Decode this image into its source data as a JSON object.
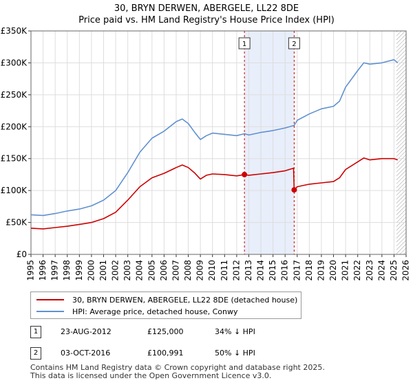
{
  "title": {
    "line1": "30, BRYN DERWEN, ABERGELE, LL22 8DE",
    "line2": "Price paid vs. HM Land Registry's House Price Index (HPI)"
  },
  "colors": {
    "property": "#cc0000",
    "hpi": "#6090d0",
    "shade": "#e8eefa"
  },
  "chart_data": {
    "type": "line",
    "title": "30, BRYN DERWEN, ABERGELE, LL22 8DE — Price paid vs. HM Land Registry's House Price Index (HPI)",
    "xlabel": "",
    "ylabel": "",
    "xlim": [
      1995,
      2026
    ],
    "ylim": [
      0,
      350000
    ],
    "y_ticks": [
      0,
      50000,
      100000,
      150000,
      200000,
      250000,
      300000,
      350000
    ],
    "y_tick_labels": [
      "£0",
      "£50K",
      "£100K",
      "£150K",
      "£200K",
      "£250K",
      "£300K",
      "£350K"
    ],
    "x_ticks": [
      1995,
      1996,
      1997,
      1998,
      1999,
      2000,
      2001,
      2002,
      2003,
      2004,
      2005,
      2006,
      2007,
      2008,
      2009,
      2010,
      2011,
      2012,
      2013,
      2014,
      2015,
      2016,
      2017,
      2018,
      2019,
      2020,
      2021,
      2022,
      2023,
      2024,
      2025,
      2026
    ],
    "grid": true,
    "legend_position": "below",
    "shaded_region": [
      2012.64,
      2016.75
    ],
    "hatched_after": 2025.2,
    "series": [
      {
        "name": "30, BRYN DERWEN, ABERGELE, LL22 8DE (detached house)",
        "color": "#cc0000",
        "x": [
          1995,
          1996,
          1997,
          1998,
          1999,
          2000,
          2001,
          2002,
          2003,
          2004,
          2005,
          2006,
          2007,
          2007.5,
          2008,
          2008.5,
          2009,
          2009.5,
          2010,
          2011,
          2012,
          2012.64,
          2013,
          2014,
          2015,
          2016,
          2016.7,
          2016.75,
          2017,
          2018,
          2019,
          2020,
          2020.5,
          2021,
          2022,
          2022.5,
          2023,
          2024,
          2025,
          2025.3
        ],
        "y": [
          41000,
          40000,
          42000,
          44000,
          47000,
          50000,
          56000,
          66000,
          85000,
          106000,
          120000,
          127000,
          136000,
          140000,
          136000,
          128000,
          118000,
          124000,
          126000,
          125000,
          123000,
          125000,
          124000,
          126000,
          128000,
          131000,
          135000,
          100991,
          106000,
          110000,
          112000,
          114000,
          120000,
          133000,
          145000,
          151000,
          148000,
          150000,
          150000,
          148000
        ]
      },
      {
        "name": "HPI: Average price, detached house, Conwy",
        "color": "#6090d0",
        "x": [
          1995,
          1996,
          1997,
          1998,
          1999,
          2000,
          2001,
          2002,
          2003,
          2004,
          2005,
          2006,
          2007,
          2007.5,
          2008,
          2008.5,
          2009,
          2009.5,
          2010,
          2011,
          2012,
          2012.64,
          2013,
          2014,
          2015,
          2016,
          2016.75,
          2017,
          2018,
          2019,
          2020,
          2020.5,
          2021,
          2022,
          2022.5,
          2023,
          2024,
          2025,
          2025.3
        ],
        "y": [
          62000,
          61000,
          64000,
          68000,
          71000,
          76000,
          85000,
          100000,
          128000,
          160000,
          182000,
          193000,
          208000,
          212000,
          205000,
          192000,
          180000,
          186000,
          190000,
          188000,
          186000,
          189000,
          187000,
          191000,
          194000,
          198000,
          202000,
          210000,
          220000,
          228000,
          232000,
          240000,
          262000,
          288000,
          300000,
          298000,
          300000,
          305000,
          300000
        ]
      }
    ],
    "markers": [
      {
        "label": "1",
        "x": 2012.64,
        "y": 125000
      },
      {
        "label": "2",
        "x": 2016.75,
        "y": 100991
      }
    ]
  },
  "legend": {
    "property_label": "30, BRYN DERWEN, ABERGELE, LL22 8DE (detached house)",
    "hpi_label": "HPI: Average price, detached house, Conwy"
  },
  "sales": [
    {
      "num": "1",
      "date": "23-AUG-2012",
      "price": "£125,000",
      "hpi": "34% ↓ HPI"
    },
    {
      "num": "2",
      "date": "03-OCT-2016",
      "price": "£100,991",
      "hpi": "50% ↓ HPI"
    }
  ],
  "footer": {
    "line1": "Contains HM Land Registry data © Crown copyright and database right 2025.",
    "line2": "This data is licensed under the Open Government Licence v3.0."
  }
}
